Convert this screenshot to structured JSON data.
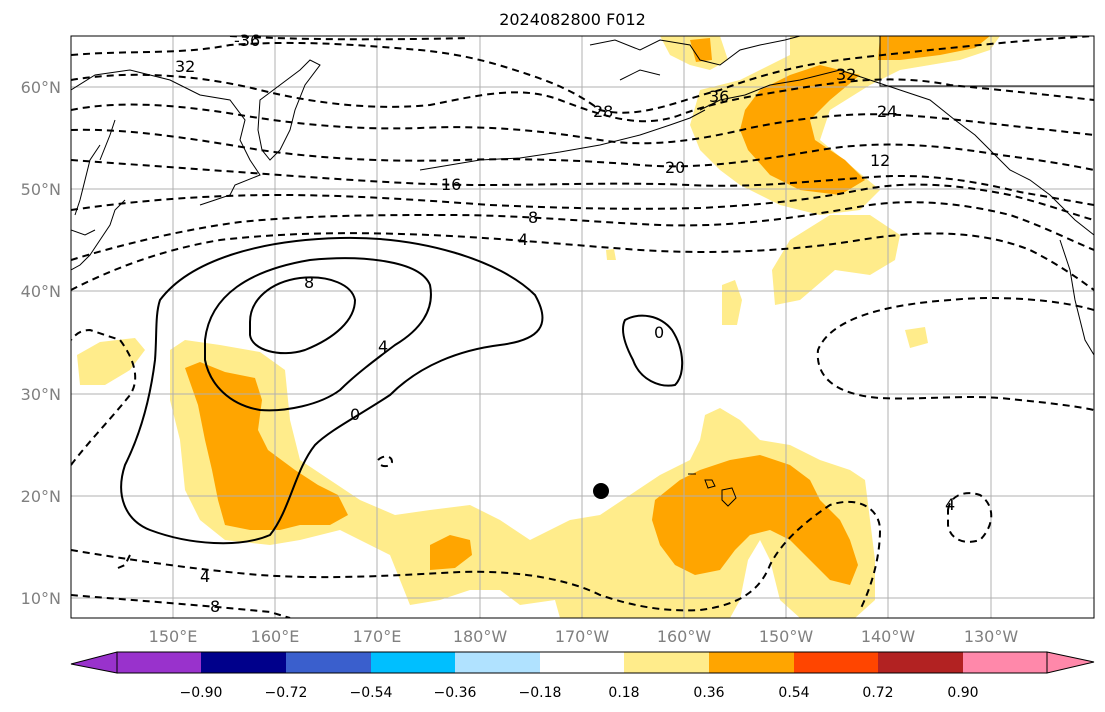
{
  "title": "2024082800 F012",
  "lat_labels": [
    "60°N",
    "50°N",
    "40°N",
    "30°N",
    "20°N",
    "10°N"
  ],
  "lon_labels": [
    "150°E",
    "160°E",
    "170°E",
    "180°W",
    "170°W",
    "160°W",
    "150°W",
    "140°W",
    "130°W"
  ],
  "contour_labels": {
    "c_m36a": "-36",
    "c_m32a": "32",
    "c_m28": "28",
    "c_m36b": "36",
    "c_m32b": "32",
    "c_m24": "24",
    "c_m20": "20",
    "c_m16": "16",
    "c_m12": "12",
    "c_m8a": "8",
    "c_m4a": "4",
    "c_p8": "8",
    "c_p4": "4",
    "c_0a": "0",
    "c_0b": "0",
    "c_m4b": "4",
    "c_m8b": "8",
    "c_m4c": "4"
  },
  "colorbar": {
    "ticks": [
      "−0.90",
      "−0.72",
      "−0.54",
      "−0.36",
      "−0.18",
      "0.18",
      "0.36",
      "0.54",
      "0.72",
      "0.90"
    ],
    "colors": [
      "#9932CC",
      "#00008B",
      "#3A5FCD",
      "#00BFFF",
      "#B0E2FF",
      "#FFFFFF",
      "#FFEC8B",
      "#FFA500",
      "#FF4500",
      "#B22222",
      "#FF88AA"
    ]
  },
  "map_colors": {
    "shade_light": "#FFEC8B",
    "shade_mid": "#FFA500",
    "grid": "#b0b0b0",
    "axis_text": "#808080"
  },
  "marker": {
    "label": "storm-center-dot"
  }
}
